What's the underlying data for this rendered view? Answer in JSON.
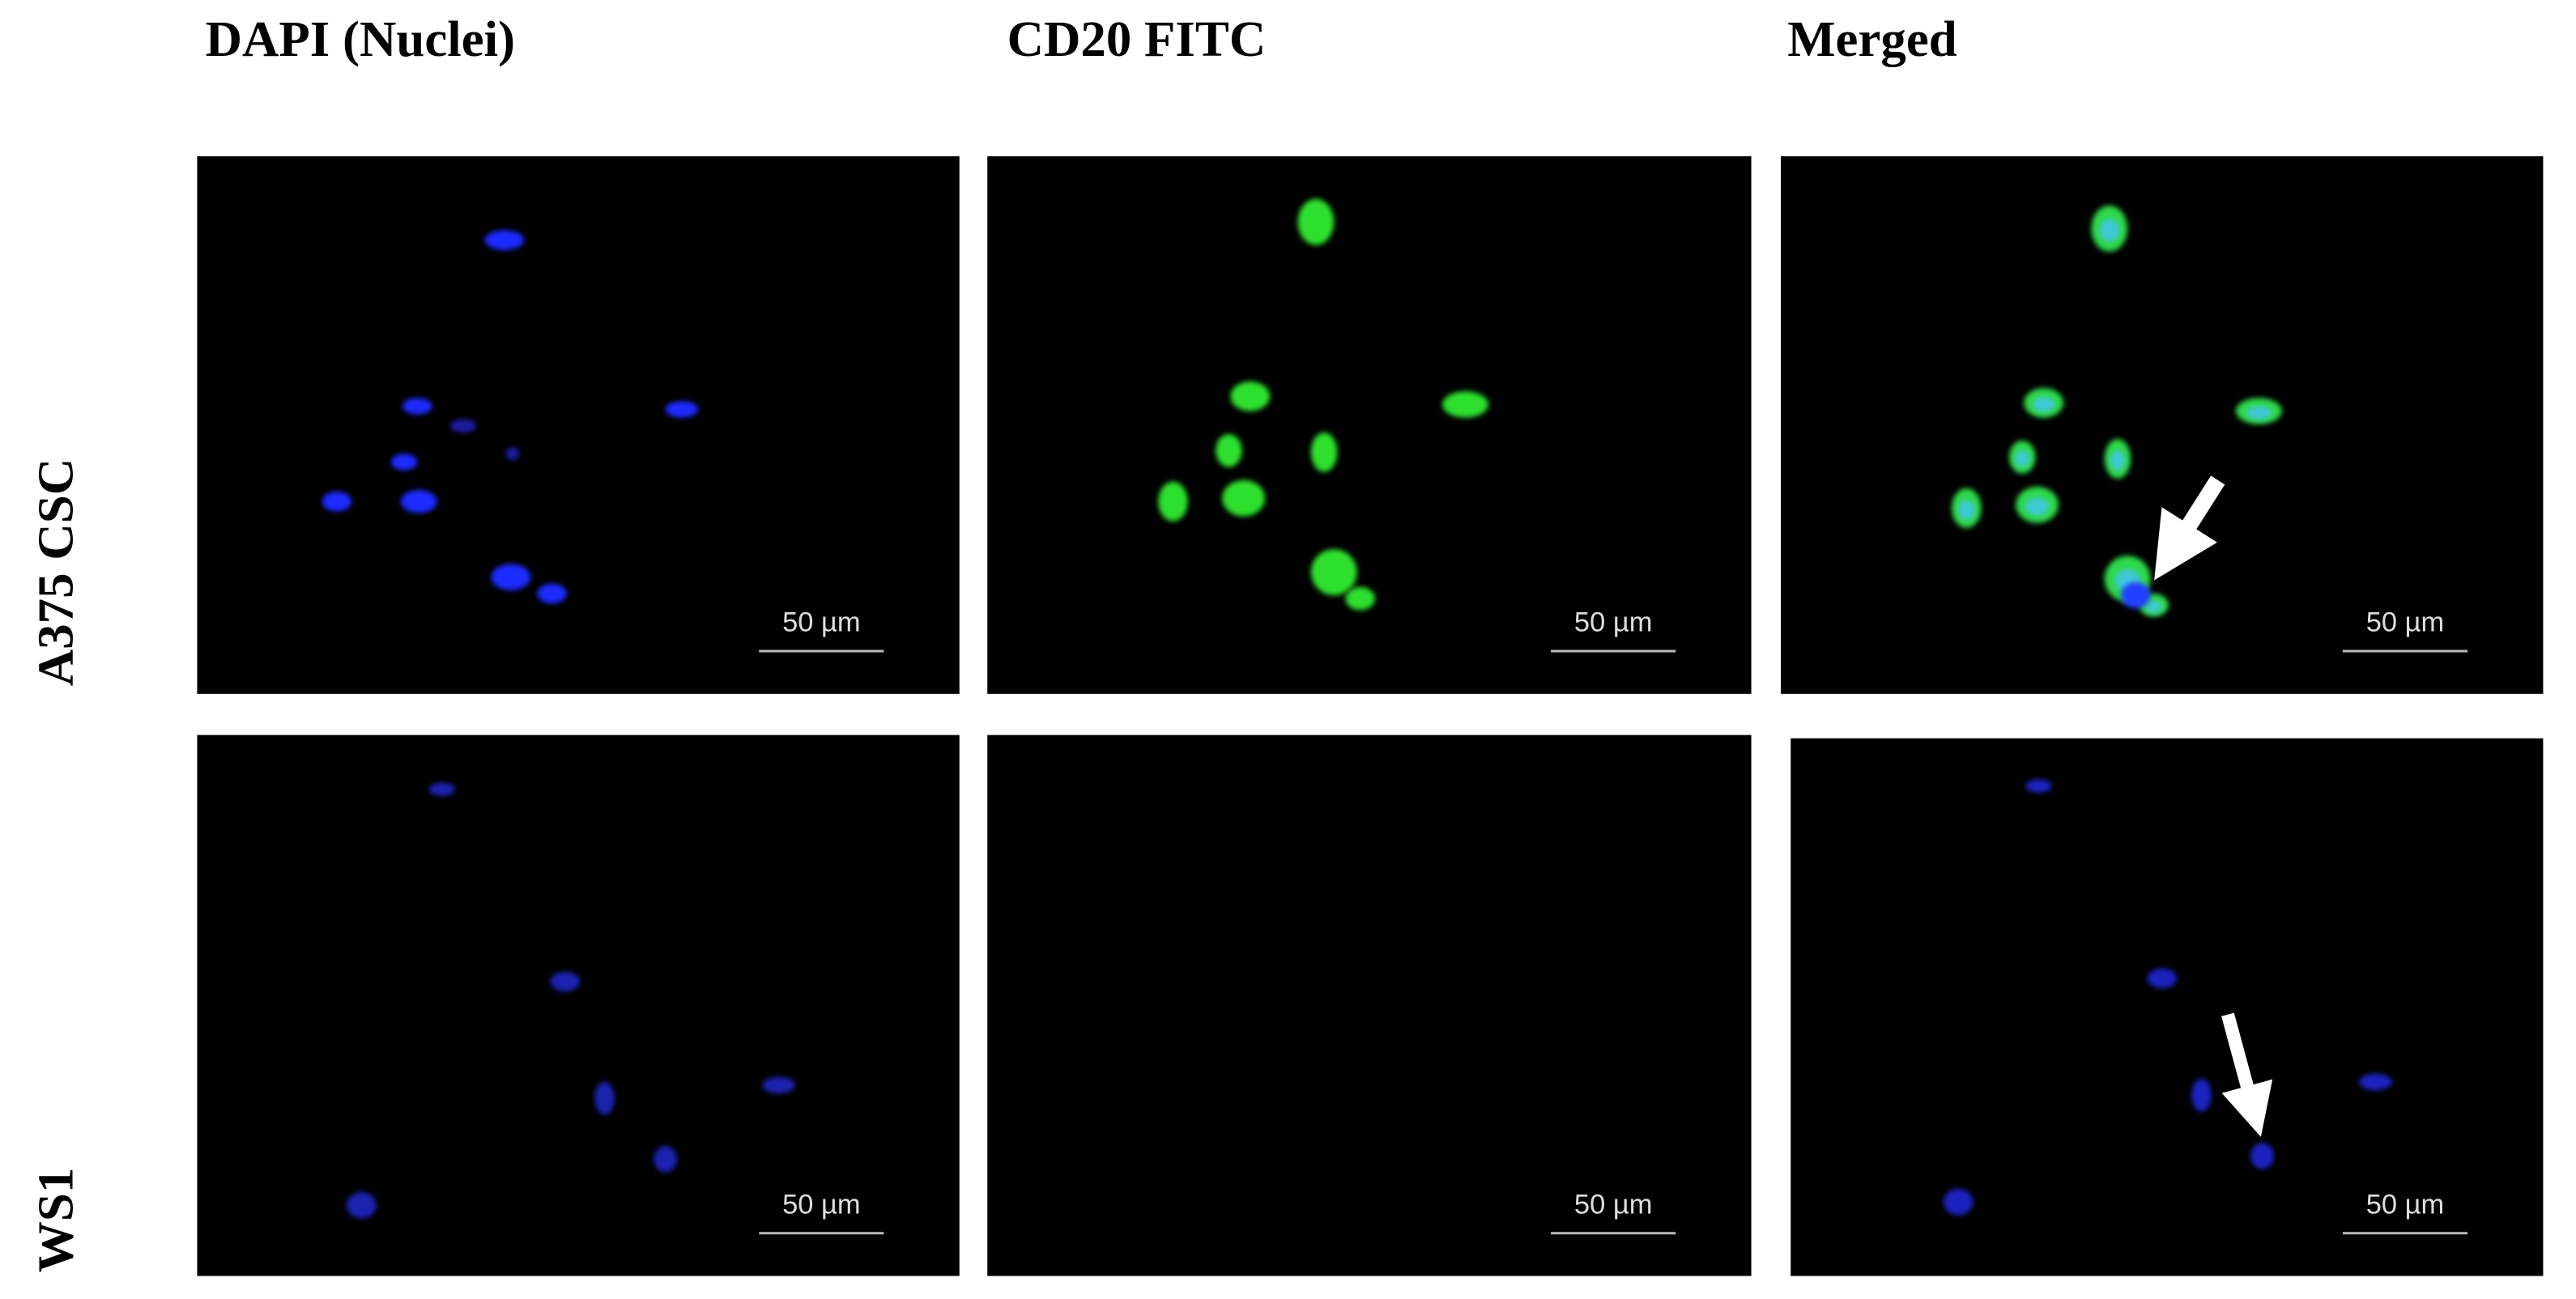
{
  "headers": {
    "columns": [
      "DAPI (Nuclei)",
      "CD20 FITC",
      "Merged"
    ]
  },
  "rows": [
    {
      "label": "A375 CSC",
      "panels": [
        {
          "scale_bar": "50 µm"
        },
        {
          "scale_bar": "50 µm"
        },
        {
          "scale_bar": "50 µm"
        }
      ]
    },
    {
      "label": "WS1",
      "panels": [
        {
          "scale_bar": "50 µm"
        },
        {
          "scale_bar": "50 µm"
        },
        {
          "scale_bar": "50 µm"
        }
      ]
    }
  ]
}
